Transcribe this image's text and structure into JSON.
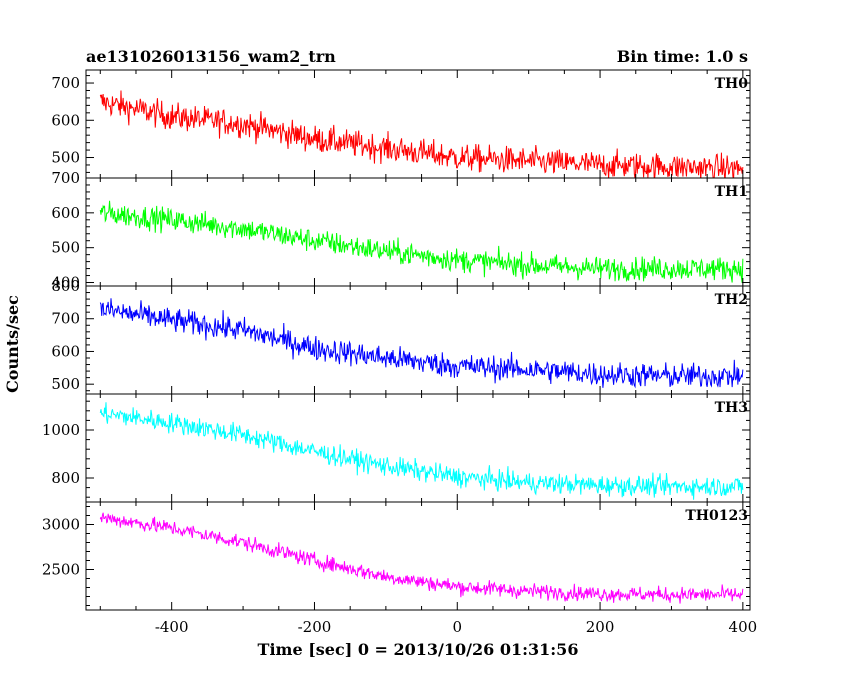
{
  "header": {
    "title": "ae131026013156_wam2_trn",
    "bin_time": "Bin time: 1.0 s"
  },
  "chart_data": {
    "type": "line",
    "title": "ae131026013156_wam2_trn",
    "subtitle": "Bin time: 1.0 s",
    "xlabel": "Time [sec] 0 = 2013/10/26 01:31:56",
    "ylabel": "Counts/sec",
    "xlim": [
      -520,
      410
    ],
    "x_ticks": [
      -400,
      -200,
      0,
      200,
      400
    ],
    "x_start": -500,
    "x_end": 400,
    "bin_time": 1.0,
    "grid": false,
    "panels": [
      {
        "name": "TH0",
        "color": "#ff0000",
        "ylim": [
          445,
          735
        ],
        "y_ticks": [
          500,
          600,
          700
        ],
        "trend": [
          [
            -500,
            650
          ],
          [
            -400,
            610
          ],
          [
            -300,
            590
          ],
          [
            -200,
            550
          ],
          [
            -100,
            525
          ],
          [
            0,
            500
          ],
          [
            100,
            490
          ],
          [
            200,
            480
          ],
          [
            300,
            475
          ],
          [
            400,
            470
          ]
        ],
        "noise": 26
      },
      {
        "name": "TH1",
        "color": "#00ff00",
        "ylim": [
          390,
          700
        ],
        "y_ticks": [
          400,
          500,
          600,
          700
        ],
        "trend": [
          [
            -500,
            600
          ],
          [
            -400,
            580
          ],
          [
            -300,
            555
          ],
          [
            -200,
            520
          ],
          [
            -100,
            490
          ],
          [
            0,
            465
          ],
          [
            100,
            450
          ],
          [
            200,
            440
          ],
          [
            300,
            440
          ],
          [
            400,
            440
          ]
        ],
        "noise": 24
      },
      {
        "name": "TH2",
        "color": "#0000ff",
        "ylim": [
          470,
          800
        ],
        "y_ticks": [
          500,
          600,
          700,
          800
        ],
        "trend": [
          [
            -500,
            730
          ],
          [
            -400,
            695
          ],
          [
            -300,
            665
          ],
          [
            -200,
            610
          ],
          [
            -100,
            580
          ],
          [
            0,
            555
          ],
          [
            100,
            545
          ],
          [
            200,
            530
          ],
          [
            300,
            525
          ],
          [
            400,
            525
          ]
        ],
        "noise": 27
      },
      {
        "name": "TH3",
        "color": "#00ffff",
        "ylim": [
          700,
          1150
        ],
        "y_ticks": [
          800,
          1000
        ],
        "trend": [
          [
            -500,
            1070
          ],
          [
            -400,
            1030
          ],
          [
            -300,
            980
          ],
          [
            -200,
            910
          ],
          [
            -100,
            850
          ],
          [
            0,
            805
          ],
          [
            100,
            780
          ],
          [
            200,
            770
          ],
          [
            300,
            765
          ],
          [
            400,
            765
          ]
        ],
        "noise": 30
      },
      {
        "name": "TH0123",
        "color": "#ff00ff",
        "ylim": [
          2050,
          3250
        ],
        "y_ticks": [
          2500,
          3000
        ],
        "trend": [
          [
            -500,
            3080
          ],
          [
            -400,
            2960
          ],
          [
            -300,
            2800
          ],
          [
            -200,
            2600
          ],
          [
            -100,
            2420
          ],
          [
            0,
            2310
          ],
          [
            100,
            2260
          ],
          [
            200,
            2230
          ],
          [
            300,
            2220
          ],
          [
            400,
            2220
          ]
        ],
        "noise": 60
      }
    ]
  }
}
